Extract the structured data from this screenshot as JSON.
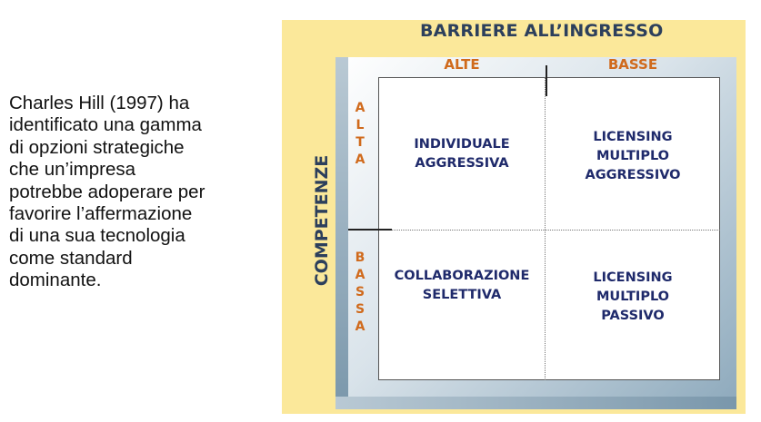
{
  "intro_text": "Charles Hill (1997) ha identificato una gamma di opzioni strategiche che un’impresa potrebbe adoperare per favorire l’affermazione di una sua tecnologia come standard dominante.",
  "intro_lines": [
    "Charles Hill (1997) ha",
    "identificato una gamma",
    "di opzioni strategiche",
    "che un’impresa",
    "potrebbe adoperare per",
    "favorire l’affermazione",
    "di una sua tecnologia",
    "come standard",
    "dominante."
  ],
  "matrix": {
    "x_axis_title": "BARRIERE ALL’INGRESSO",
    "y_axis_title": "COMPETENZE",
    "columns": [
      "ALTE",
      "BASSE"
    ],
    "rows": [
      "ALTA",
      "BASSA"
    ],
    "cells": {
      "alta_alte": [
        "INDIVIDUALE",
        "AGGRESSIVA"
      ],
      "alta_basse": [
        "LICENSING",
        "MULTIPLO",
        "AGGRESSIVO"
      ],
      "bassa_alte": [
        "COLLABORAZIONE",
        "SELETTIVA"
      ],
      "bassa_basse": [
        "LICENSING",
        "MULTIPLO",
        "PASSIVO"
      ]
    }
  },
  "colors": {
    "frame": "#fbe89a",
    "axis_title": "#2c3f5c",
    "labels": "#d06a1c",
    "cell_text": "#1f2a6b"
  }
}
